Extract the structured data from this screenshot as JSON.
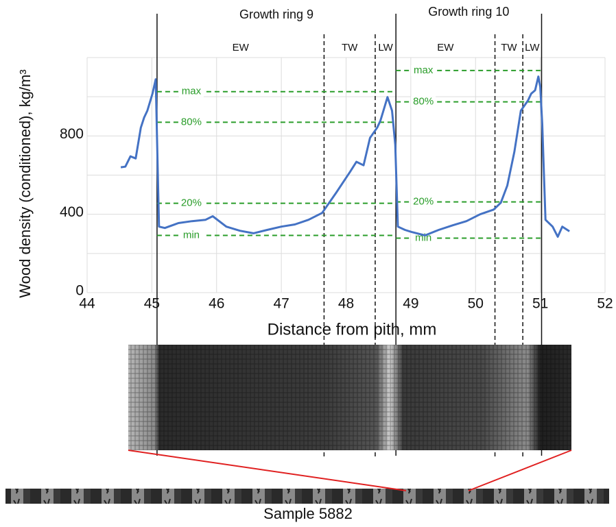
{
  "chart_data": {
    "type": "line",
    "x_label": "Distance from pith, mm",
    "y_label": "Wood density (conditioned), kg/m³",
    "xlim": [
      44,
      52
    ],
    "ylim": [
      0,
      1200
    ],
    "xticks": [
      44,
      45,
      46,
      47,
      48,
      49,
      50,
      51,
      52
    ],
    "yticks": [
      0,
      400,
      800
    ],
    "ygrid": [
      0,
      200,
      400,
      600,
      800,
      1000,
      1200
    ],
    "series": [
      {
        "color": "#4472c4",
        "x": [
          44.52,
          44.59,
          44.67,
          44.75,
          44.83,
          44.88,
          44.93,
          45.01,
          45.06,
          45.11,
          45.2,
          45.41,
          45.62,
          45.83,
          45.94,
          46.15,
          46.36,
          46.57,
          46.78,
          47.0,
          47.21,
          47.42,
          47.63,
          47.85,
          48.06,
          48.16,
          48.27,
          48.37,
          48.48,
          48.53,
          48.64,
          48.71,
          48.76,
          48.8,
          48.91,
          49.01,
          49.22,
          49.43,
          49.65,
          49.86,
          50.07,
          50.28,
          50.39,
          50.49,
          50.6,
          50.7,
          50.81,
          50.86,
          50.92,
          50.97,
          51.0,
          51.03,
          51.08,
          51.19,
          51.27,
          51.34,
          51.45
        ],
        "values": [
          640,
          643,
          696,
          685,
          842,
          894,
          929,
          1016,
          1089,
          337,
          330,
          355,
          365,
          372,
          390,
          337,
          316,
          303,
          320,
          337,
          348,
          372,
          407,
          511,
          616,
          668,
          650,
          790,
          842,
          877,
          998,
          929,
          755,
          337,
          320,
          310,
          292,
          320,
          344,
          365,
          400,
          424,
          459,
          546,
          720,
          929,
          981,
          1016,
          1033,
          1103,
          1050,
          859,
          372,
          337,
          285,
          337,
          313
        ]
      }
    ],
    "rings": [
      {
        "title": "Growth ring 9",
        "start": 45.08,
        "end": 48.77,
        "zones": [
          {
            "label": "EW",
            "end": 47.66
          },
          {
            "label": "TW",
            "end": 48.45
          },
          {
            "label": "LW"
          }
        ],
        "levels": [
          {
            "label": "max",
            "value": 1026
          },
          {
            "label": "80%",
            "value": 870
          },
          {
            "label": "20%",
            "value": 456
          },
          {
            "label": "min",
            "value": 292
          }
        ]
      },
      {
        "title": "Growth ring 10",
        "start": 48.77,
        "end": 51.02,
        "zones": [
          {
            "label": "EW",
            "end": 50.3
          },
          {
            "label": "TW",
            "end": 50.73
          },
          {
            "label": "LW"
          }
        ],
        "levels": [
          {
            "label": "max",
            "value": 1134
          },
          {
            "label": "80%",
            "value": 974
          },
          {
            "label": "20%",
            "value": 463
          },
          {
            "label": "min",
            "value": 278
          }
        ]
      }
    ]
  },
  "sample_label": "Sample 5882"
}
